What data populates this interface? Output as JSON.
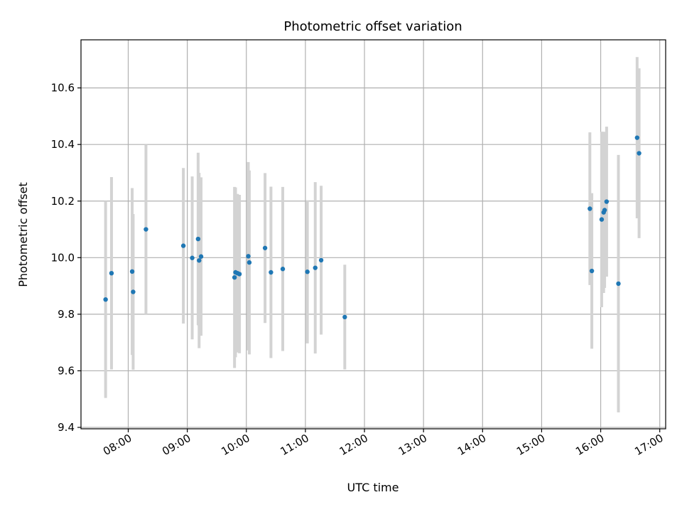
{
  "chart_data": {
    "type": "scatter",
    "title": "Photometric offset variation",
    "xlabel": "UTC time",
    "ylabel": "Photometric offset",
    "x_ticks": [
      "08:00",
      "09:00",
      "10:00",
      "11:00",
      "12:00",
      "13:00",
      "14:00",
      "15:00",
      "16:00",
      "17:00"
    ],
    "y_ticks": [
      "9.4",
      "9.6",
      "9.8",
      "10.0",
      "10.2",
      "10.4",
      "10.6"
    ],
    "xlim": [
      "07:12",
      "17:06"
    ],
    "ylim": [
      9.395,
      10.77
    ],
    "grid": true,
    "marker_color": "#1f77b4",
    "errorbar_color": "#d3d3d3",
    "series": [
      {
        "points": [
          {
            "x": "07:37",
            "y": 9.852,
            "err": 0.348
          },
          {
            "x": "07:43",
            "y": 9.945,
            "err": 0.34
          },
          {
            "x": "08:04",
            "y": 9.951,
            "err": 0.295
          },
          {
            "x": "08:05",
            "y": 9.879,
            "err": 0.275
          },
          {
            "x": "08:18",
            "y": 10.1,
            "err": 0.3
          },
          {
            "x": "08:56",
            "y": 10.042,
            "err": 0.275
          },
          {
            "x": "09:05",
            "y": 9.999,
            "err": 0.288
          },
          {
            "x": "09:11",
            "y": 10.066,
            "err": 0.305
          },
          {
            "x": "09:12",
            "y": 9.99,
            "err": 0.31
          },
          {
            "x": "09:14",
            "y": 10.004,
            "err": 0.28
          },
          {
            "x": "09:48",
            "y": 9.93,
            "err": 0.32
          },
          {
            "x": "09:49",
            "y": 9.948,
            "err": 0.3
          },
          {
            "x": "09:51",
            "y": 9.945,
            "err": 0.28
          },
          {
            "x": "09:53",
            "y": 9.942,
            "err": 0.28
          },
          {
            "x": "10:02",
            "y": 10.005,
            "err": 0.333
          },
          {
            "x": "10:03",
            "y": 9.983,
            "err": 0.325
          },
          {
            "x": "10:19",
            "y": 10.034,
            "err": 0.265
          },
          {
            "x": "10:25",
            "y": 9.948,
            "err": 0.303
          },
          {
            "x": "10:37",
            "y": 9.96,
            "err": 0.29
          },
          {
            "x": "11:02",
            "y": 9.95,
            "err": 0.253
          },
          {
            "x": "11:10",
            "y": 9.964,
            "err": 0.303
          },
          {
            "x": "11:16",
            "y": 9.991,
            "err": 0.263
          },
          {
            "x": "11:40",
            "y": 9.79,
            "err": 0.185
          },
          {
            "x": "15:49",
            "y": 10.173,
            "err": 0.27
          },
          {
            "x": "15:51",
            "y": 9.953,
            "err": 0.275
          },
          {
            "x": "16:01",
            "y": 10.135,
            "err": 0.31
          },
          {
            "x": "16:03",
            "y": 10.16,
            "err": 0.285
          },
          {
            "x": "16:04",
            "y": 10.168,
            "err": 0.275
          },
          {
            "x": "16:06",
            "y": 10.198,
            "err": 0.265
          },
          {
            "x": "16:18",
            "y": 9.908,
            "err": 0.455
          },
          {
            "x": "16:37",
            "y": 10.424,
            "err": 0.285
          },
          {
            "x": "16:39",
            "y": 10.369,
            "err": 0.3
          }
        ]
      }
    ]
  }
}
